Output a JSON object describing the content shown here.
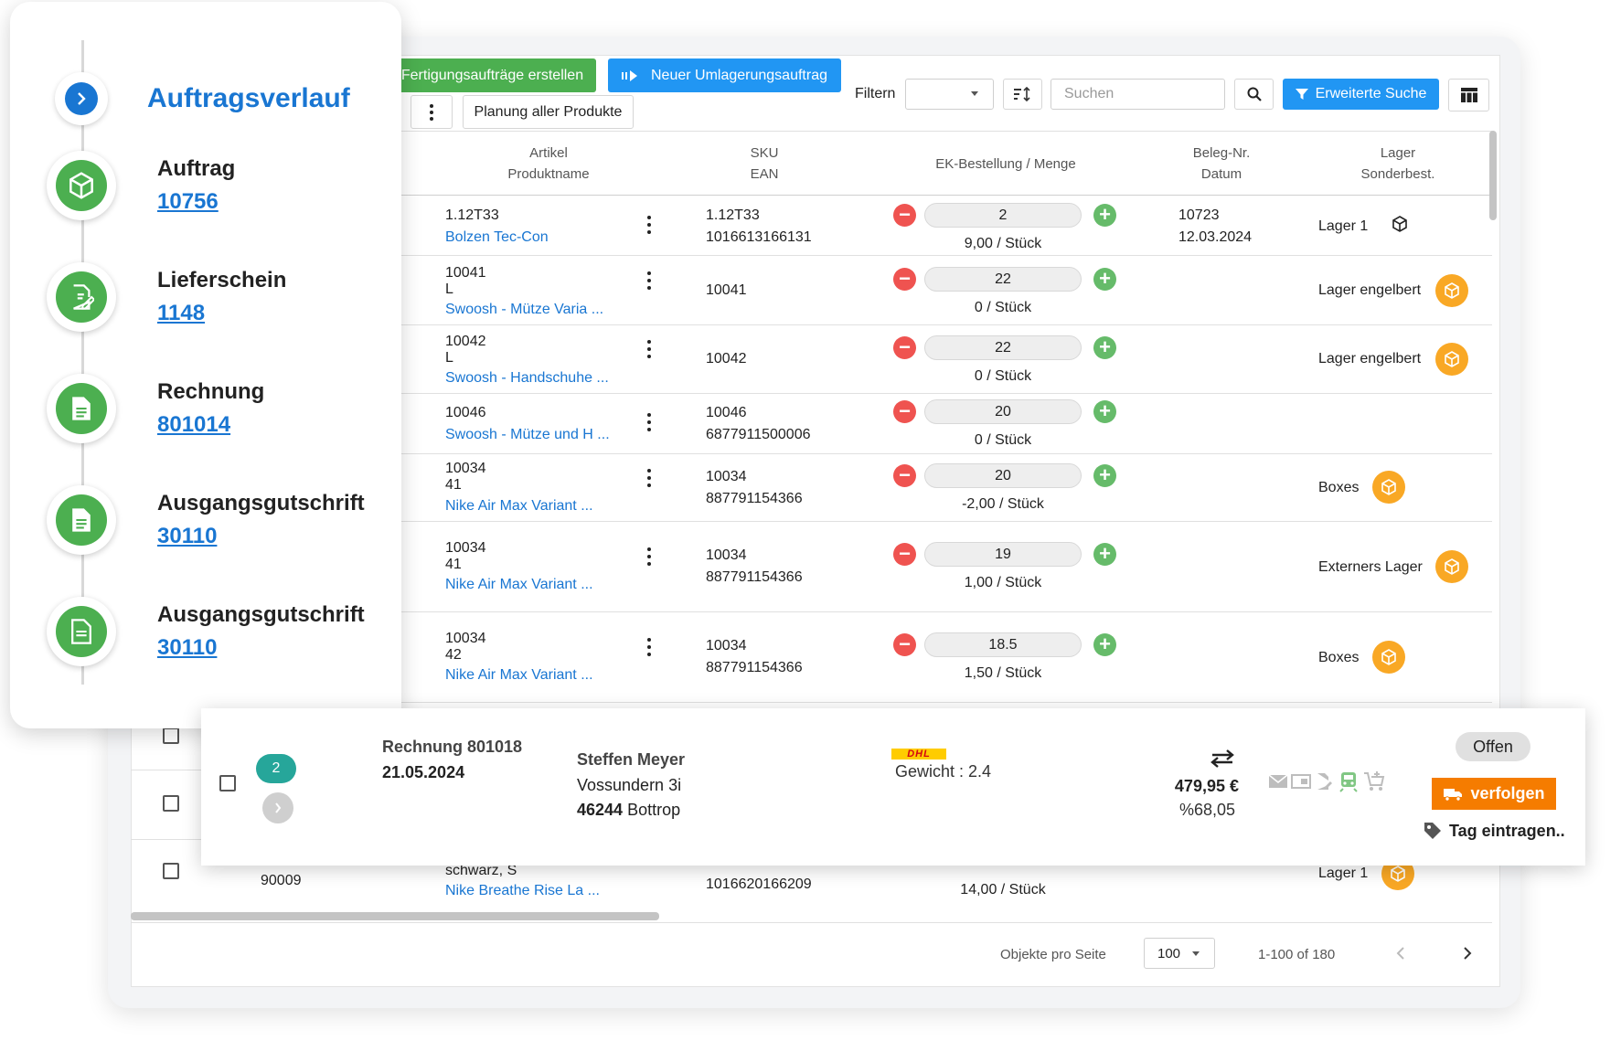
{
  "toolbar": {
    "btn_fertigung": "Fertigungsaufträge erstellen",
    "btn_umlagerung": "Neuer Umlagerungsauftrag",
    "filter_label": "Filtern",
    "search_placeholder": "Suchen",
    "btn_erweiterte": "Erweiterte Suche",
    "btn_planung": "Planung aller Produkte"
  },
  "table": {
    "headers": {
      "artikel": "Artikel",
      "produktname": "Produktname",
      "sku": "SKU",
      "ean": "EAN",
      "ek": "EK-Bestellung / Menge",
      "beleg": "Beleg-Nr.",
      "datum": "Datum",
      "lager": "Lager",
      "sonderbest": "Sonderbest."
    },
    "rows": [
      {
        "a1": "1.12T33",
        "a2": "",
        "name": "Bolzen Tec-Con",
        "sku": "1.12T33",
        "ean": "1016613166131",
        "qty": "2",
        "sub": "9,00 / Stück",
        "beleg": "10723",
        "datum": "12.03.2024",
        "lager": "Lager 1"
      },
      {
        "a1": "10041",
        "a2": "L",
        "name": "Swoosh - Mütze Varia ...",
        "sku": "10041",
        "ean": "",
        "qty": "22",
        "sub": "0 / Stück",
        "beleg": "",
        "datum": "",
        "lager": "Lager engelbert"
      },
      {
        "a1": "10042",
        "a2": "L",
        "name": "Swoosh - Handschuhe ...",
        "sku": "10042",
        "ean": "",
        "qty": "22",
        "sub": "0 / Stück",
        "beleg": "",
        "datum": "",
        "lager": "Lager engelbert"
      },
      {
        "a1": "10046",
        "a2": "",
        "name": "Swoosh - Mütze und H ...",
        "sku": "10046",
        "ean": "6877911500006",
        "qty": "20",
        "sub": "0 / Stück",
        "beleg": "",
        "datum": "",
        "lager": ""
      },
      {
        "a1": "10034",
        "a2": "41",
        "name": "Nike Air Max Variant ...",
        "sku": "10034",
        "ean": "887791154366",
        "qty": "20",
        "sub": "-2,00 / Stück",
        "beleg": "",
        "datum": "",
        "lager": "Boxes"
      },
      {
        "a1": "10034",
        "a2": "41",
        "name": "Nike Air Max Variant ...",
        "sku": "10034",
        "ean": "887791154366",
        "qty": "19",
        "sub": "1,00 / Stück",
        "beleg": "",
        "datum": "",
        "lager": "Externers Lager"
      },
      {
        "a1": "10034",
        "a2": "42",
        "name": "Nike Air Max Variant ...",
        "sku": "10034",
        "ean": "887791154366",
        "qty": "18.5",
        "sub": "1,50 / Stück",
        "beleg": "",
        "datum": "",
        "lager": "Boxes"
      }
    ],
    "bottom_row": {
      "a_pre": "schwarz, S",
      "id": "90009",
      "name": "Nike Breathe Rise La ...",
      "ean": "1016620166209",
      "sub": "14,00 / Stück",
      "lager": "Lager 1"
    }
  },
  "pagination": {
    "per_page_label": "Objekte pro Seite",
    "per_page": "100",
    "range": "1-100 of 180"
  },
  "timeline": {
    "title": "Auftragsverlauf",
    "items": [
      {
        "label": "Auftrag",
        "number": "10756",
        "icon": "box-icon"
      },
      {
        "label": "Lieferschein",
        "number": "1148",
        "icon": "document-edit-icon"
      },
      {
        "label": "Rechnung",
        "number": "801014",
        "icon": "document-icon"
      },
      {
        "label": "Ausgangsgutschrift",
        "number": "30110",
        "icon": "document-icon"
      },
      {
        "label": "Ausgangsgutschrift",
        "number": "30110",
        "icon": "credit-note-icon"
      }
    ]
  },
  "invoice": {
    "badge": "2",
    "title": "Rechnung 801018",
    "date": "21.05.2024",
    "customer_name": "Steffen Meyer",
    "street": "Vossundern 3i",
    "zip": "46244",
    "city": "Bottrop",
    "carrier": "DHL",
    "weight": "Gewicht : 2.4",
    "amount": "479,95 €",
    "percent": "%68,05",
    "status": "Offen",
    "track_label": "verfolgen",
    "tag_label": "Tag eintragen.."
  },
  "colors": {
    "green": "#4caf50",
    "blue": "#2196f3",
    "link": "#1976d2",
    "orange": "#f9a825",
    "red": "#ef5350",
    "teal": "#26a69a",
    "track_orange": "#f57c00",
    "dhl_yellow": "#ffcc00"
  }
}
